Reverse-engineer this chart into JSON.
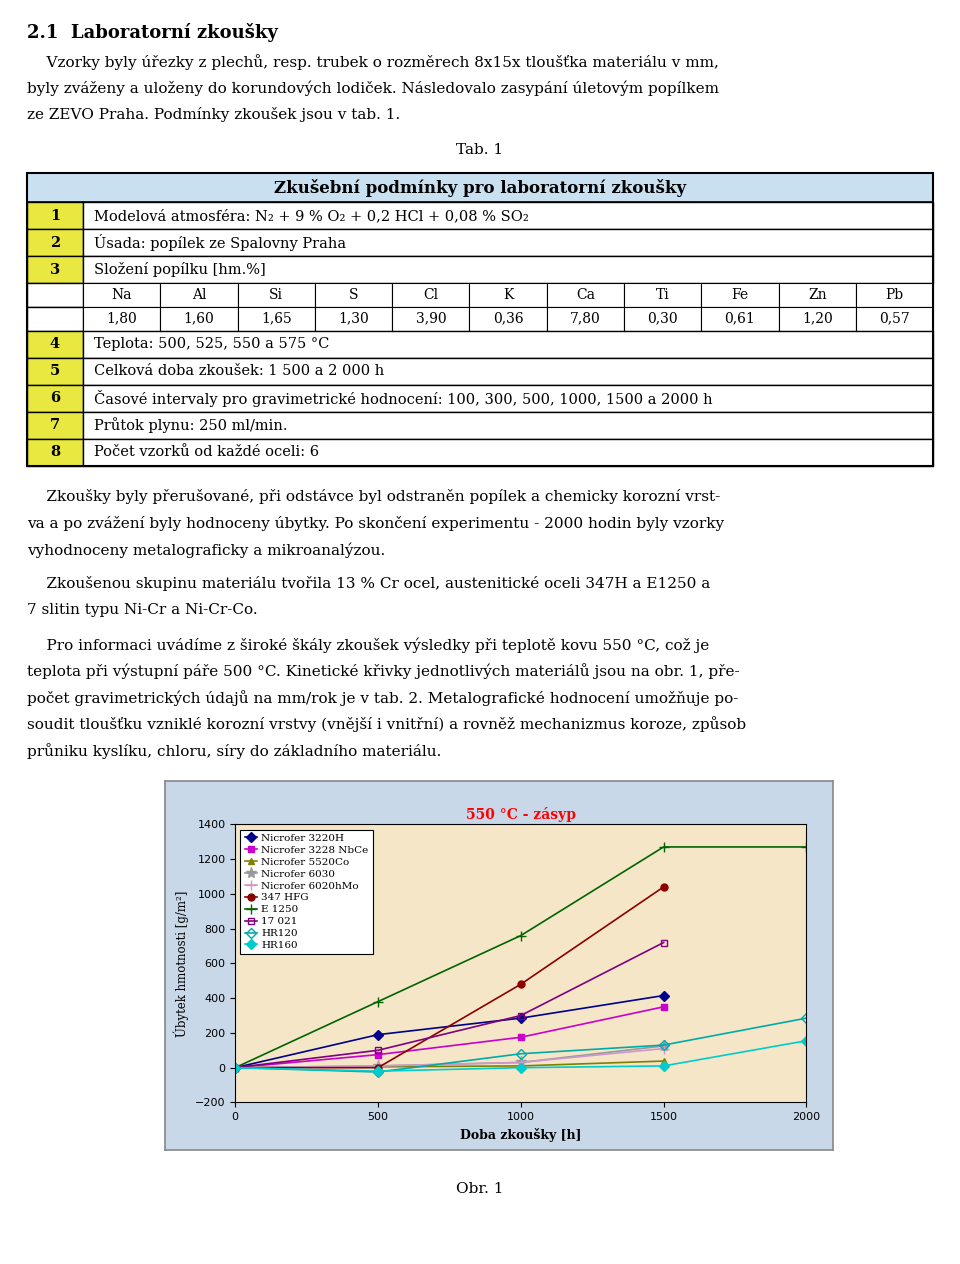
{
  "title_text": "2.1  Laboratorní zkoušky",
  "para1_lines": [
    "    Vzorky byly úřezky z plechů, resp. trubek o rozměrech 8x15x tloušťka materiálu v mm,",
    "byly zváženy a uloženy do korundových lodiček. Následovalo zasypání úletovým popílkem",
    "ze ZEVO Praha. Podmínky zkoušek jsou v tab. 1."
  ],
  "tab_label": "Tab. 1",
  "table_header": "Zkušební podmínky pro laboratorní zkoušky",
  "table_num_rows": [
    {
      "num": "1",
      "text": "Modelová atmosféra: N₂ + 9 % O₂ + 0,2 HCl + 0,08 % SO₂"
    },
    {
      "num": "2",
      "text": "Úsada: popílek ze Spalovny Praha"
    },
    {
      "num": "3",
      "text": "Složení popílku [hm.%]"
    },
    {
      "num": "4",
      "text": "Teplota: 500, 525, 550 a 575 °C"
    },
    {
      "num": "5",
      "text": "Celková doba zkoušek: 1 500 a 2 000 h"
    },
    {
      "num": "6",
      "text": "Časové intervaly pro gravimetrické hodnocení: 100, 300, 500, 1000, 1500 a 2000 h"
    },
    {
      "num": "7",
      "text": "Průtok plynu: 250 ml/min."
    },
    {
      "num": "8",
      "text": "Počet vzorků od každé oceli: 6"
    }
  ],
  "sub_cols": [
    "Na",
    "Al",
    "Si",
    "S",
    "Cl",
    "K",
    "Ca",
    "Ti",
    "Fe",
    "Zn",
    "Pb"
  ],
  "val_cols": [
    "1,80",
    "1,60",
    "1,65",
    "1,30",
    "3,90",
    "0,36",
    "7,80",
    "0,30",
    "0,61",
    "1,20",
    "0,57"
  ],
  "para2_lines": [
    "    Zkoušky byly přerušované, při odstávce byl odstraněn popílek a chemicky korozní vrst-",
    "va a po zvážení byly hodnoceny úbytky. Po skončení experimentu - 2000 hodin byly vzorky",
    "vyhodnoceny metalograficky a mikroanalýzou."
  ],
  "para3_lines": [
    "    Zkoušenou skupinu materiálu tvořila 13 % Cr ocel, austenitické oceli 347H a E1250 a",
    "7 slitin typu Ni-Cr a Ni-Cr-Co."
  ],
  "para4_lines": [
    "    Pro informaci uvádíme z široké škály zkoušek výsledky při teplotě kovu 550 °C, což je",
    "teplota při výstupní páře 500 °C. Kinetické křivky jednotlivých materiálů jsou na obr. 1, pře-",
    "počet gravimetrických údajů na mm/rok je v tab. 2. Metalografické hodnocení umožňuje po-",
    "soudit tloušťku vzniklé korozní vrstvy (vnější i vnitřní) a rovněž mechanizmus koroze, způsob",
    "průniku kyslíku, chloru, síry do základního materiálu."
  ],
  "obr_title": "Obr. 1",
  "chart_title": "550 °C - zásyp",
  "chart_title_color": "#FF0000",
  "chart_bg": "#F5E6C8",
  "chart_outer_bg": "#C8D8E8",
  "chart_xlabel": "Doba zkoušky [h]",
  "chart_ylabel": "Úbytek hmotnosti [g/m²]",
  "chart_ylim": [
    -200,
    1400
  ],
  "chart_xlim": [
    0,
    2000
  ],
  "chart_yticks": [
    -200,
    0,
    200,
    400,
    600,
    800,
    1000,
    1200,
    1400
  ],
  "chart_xticks": [
    0,
    500,
    1000,
    1500,
    2000
  ],
  "series": [
    {
      "label": "Nicrofer 3220H",
      "color": "#00008B",
      "marker": "D",
      "mfc": "#00008B",
      "mec": "#00008B",
      "x": [
        0,
        500,
        1000,
        1500
      ],
      "y": [
        0,
        190,
        285,
        415
      ]
    },
    {
      "label": "Nicrofer 3228 NbCe",
      "color": "#CC00CC",
      "marker": "s",
      "mfc": "#CC00CC",
      "mec": "#CC00CC",
      "x": [
        0,
        500,
        1000,
        1500
      ],
      "y": [
        0,
        75,
        175,
        350
      ]
    },
    {
      "label": "Nicrofer 5520Co",
      "color": "#808000",
      "marker": "^",
      "mfc": "#808000",
      "mec": "#808000",
      "x": [
        0,
        500,
        1000,
        1500
      ],
      "y": [
        0,
        5,
        10,
        38
      ]
    },
    {
      "label": "Nicrofer 6030",
      "color": "#999999",
      "marker": "*",
      "mfc": "#999999",
      "mec": "#999999",
      "x": [
        0,
        500,
        1000,
        1500
      ],
      "y": [
        0,
        10,
        30,
        125
      ]
    },
    {
      "label": "Nicrofer 6020hMo",
      "color": "#CC99CC",
      "marker": "+",
      "mfc": "#CC99CC",
      "mec": "#CC99CC",
      "x": [
        0,
        500,
        1000,
        1500
      ],
      "y": [
        0,
        10,
        30,
        110
      ]
    },
    {
      "label": "347 HFG",
      "color": "#8B0000",
      "marker": "o",
      "mfc": "#8B0000",
      "mec": "#8B0000",
      "x": [
        0,
        500,
        1000,
        1500
      ],
      "y": [
        0,
        0,
        480,
        1040
      ]
    },
    {
      "label": "E 1250",
      "color": "#006400",
      "marker": "+",
      "mfc": "none",
      "mec": "#006400",
      "x": [
        0,
        500,
        1000,
        1500,
        2000
      ],
      "y": [
        0,
        380,
        760,
        1270,
        1270
      ]
    },
    {
      "label": "17 021",
      "color": "#800080",
      "marker": "s",
      "mfc": "none",
      "mec": "#800080",
      "x": [
        0,
        500,
        1000,
        1500
      ],
      "y": [
        0,
        100,
        300,
        720
      ]
    },
    {
      "label": "HR120",
      "color": "#00AAAA",
      "marker": "D",
      "mfc": "none",
      "mec": "#00AAAA",
      "x": [
        0,
        500,
        1000,
        1500,
        2000
      ],
      "y": [
        0,
        -25,
        80,
        130,
        285
      ]
    },
    {
      "label": "HR160",
      "color": "#00CCCC",
      "marker": "D",
      "mfc": "#00CCCC",
      "mec": "#00CCCC",
      "x": [
        0,
        500,
        1000,
        1500,
        2000
      ],
      "y": [
        0,
        -20,
        0,
        10,
        155
      ]
    }
  ]
}
